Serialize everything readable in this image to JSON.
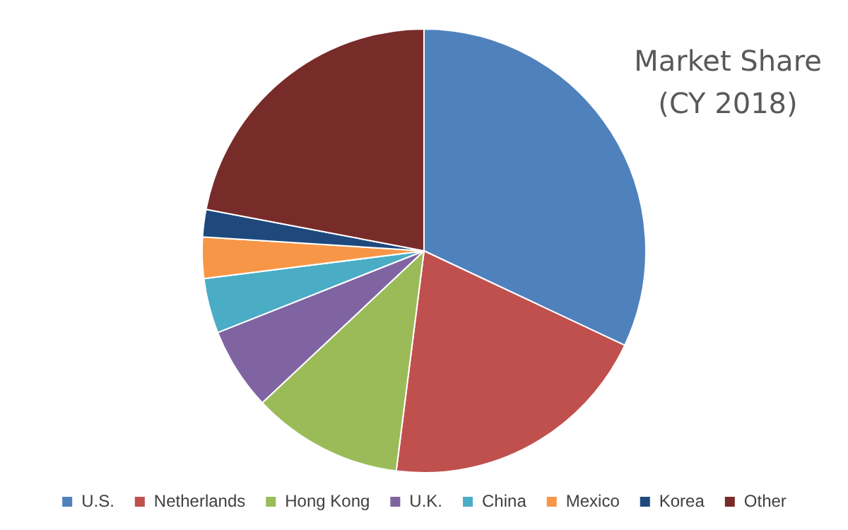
{
  "chart_data": {
    "type": "pie",
    "title": "Market Share (CY 2018)",
    "categories": [
      "U.S.",
      "Netherlands",
      "Hong Kong",
      "U.K.",
      "China",
      "Mexico",
      "Korea",
      "Other"
    ],
    "values": [
      32,
      20,
      11,
      6,
      4,
      3,
      2,
      22
    ],
    "colors": [
      "#4f81bd",
      "#c0504d",
      "#9bbb59",
      "#8064a2",
      "#4bacc6",
      "#f79646",
      "#1f497d",
      "#772c2a"
    ],
    "legend": "bottom"
  }
}
